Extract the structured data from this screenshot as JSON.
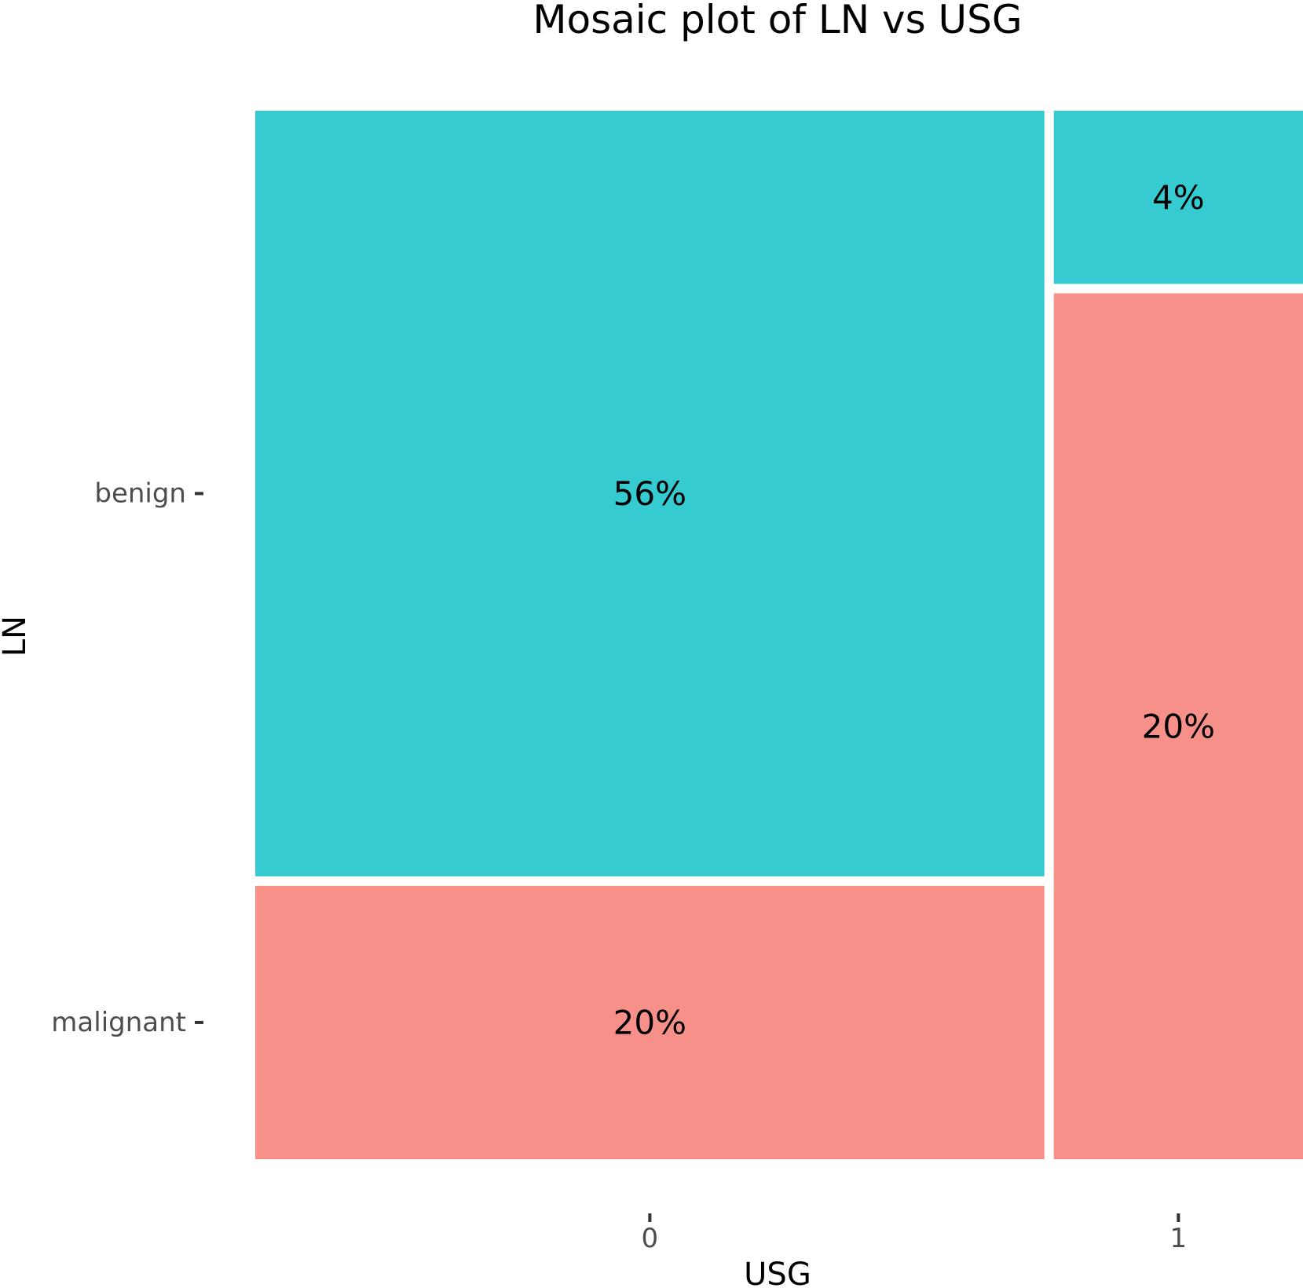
{
  "chart_data": {
    "type": "mosaic",
    "title": "Mosaic plot of LN vs USG",
    "xlabel": "USG",
    "ylabel": "LN",
    "x_categories": [
      "0",
      "1"
    ],
    "y_categories": [
      "benign",
      "malignant"
    ],
    "colors": {
      "benign": "#35CBD1",
      "malignant": "#F8908A"
    },
    "cells": [
      {
        "x": "0",
        "y": "benign",
        "value": 0.56,
        "label": "56%"
      },
      {
        "x": "0",
        "y": "malignant",
        "value": 0.2,
        "label": "20%"
      },
      {
        "x": "1",
        "y": "benign",
        "value": 0.04,
        "label": "4%"
      },
      {
        "x": "1",
        "y": "malignant",
        "value": 0.2,
        "label": "20%"
      }
    ],
    "grid": false,
    "legend": "none"
  }
}
